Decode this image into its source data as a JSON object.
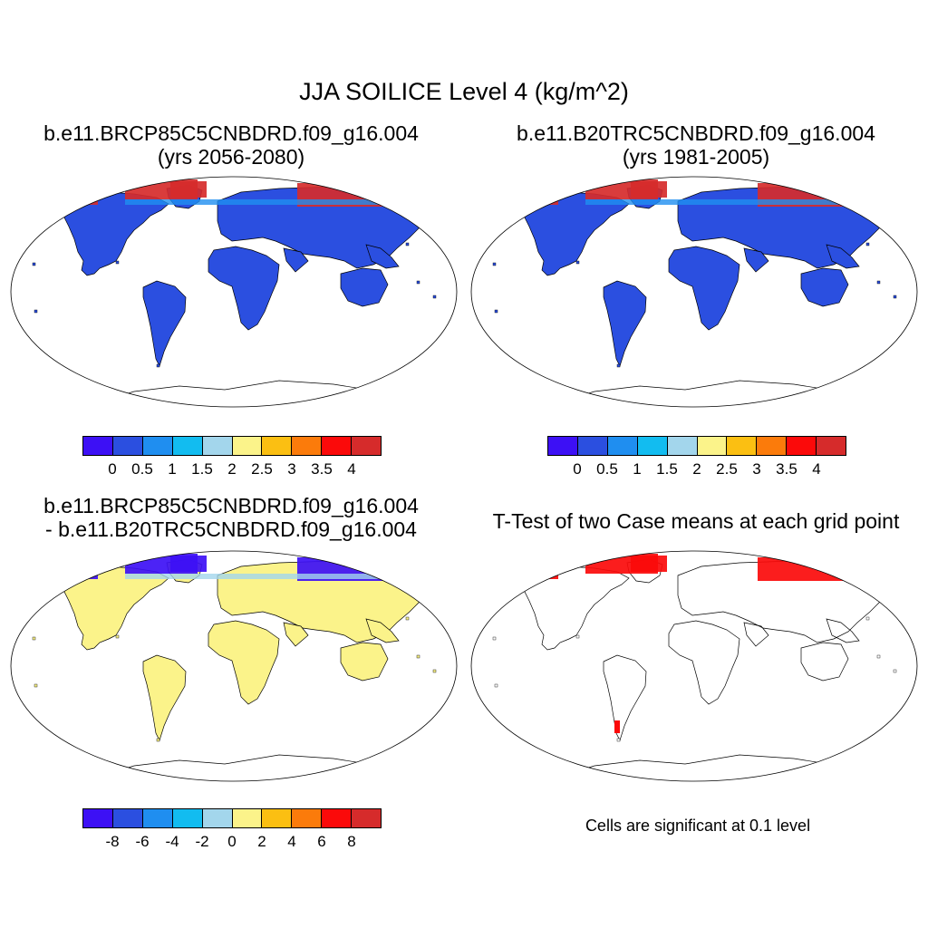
{
  "title": "JJA SOILICE Level 4 (kg/m^2)",
  "panels": [
    {
      "title_line1": "b.e11.BRCP85C5CNBDRD.f09_g16.004",
      "title_line2": "(yrs 2056-2080)",
      "fill": "blue",
      "arctic": "red"
    },
    {
      "title_line1": "b.e11.B20TRC5CNBDRD.f09_g16.004",
      "title_line2": "(yrs 1981-2005)",
      "fill": "blue",
      "arctic": "red"
    },
    {
      "title_line1": "b.e11.BRCP85C5CNBDRD.f09_g16.004",
      "title_line2": "- b.e11.B20TRC5CNBDRD.f09_g16.004",
      "fill": "yellow",
      "arctic": "blue"
    },
    {
      "title_line1": "T-Test of two Case means at each grid point",
      "fill": "none",
      "arctic": "red"
    }
  ],
  "colorbars": {
    "abs": {
      "colors": [
        "#3d10f5",
        "#2b4fe0",
        "#1f8ef0",
        "#12bcf0",
        "#a3d6ec",
        "#fbf38a",
        "#fbbf12",
        "#fb7b0b",
        "#fb0a0a",
        "#d62b2b"
      ],
      "ticks": [
        "0",
        "0.5",
        "1",
        "1.5",
        "2",
        "2.5",
        "3",
        "3.5",
        "4"
      ]
    },
    "diff": {
      "colors": [
        "#3d10f5",
        "#2b4fe0",
        "#1f8ef0",
        "#12bcf0",
        "#a3d6ec",
        "#fbf38a",
        "#fbbf12",
        "#fb7b0b",
        "#fb0a0a",
        "#d62b2b"
      ],
      "ticks": [
        "-8",
        "-6",
        "-4",
        "-2",
        "0",
        "2",
        "4",
        "6",
        "8"
      ]
    }
  },
  "significance_note": "Cells are significant at 0.1 level",
  "colors": {
    "land_abs": "#2b4fe0",
    "land_diff": "#fbf38a",
    "arctic_high": "#d62b2b",
    "arctic_neg": "#3d10f5",
    "signif": "#fb0a0a"
  }
}
